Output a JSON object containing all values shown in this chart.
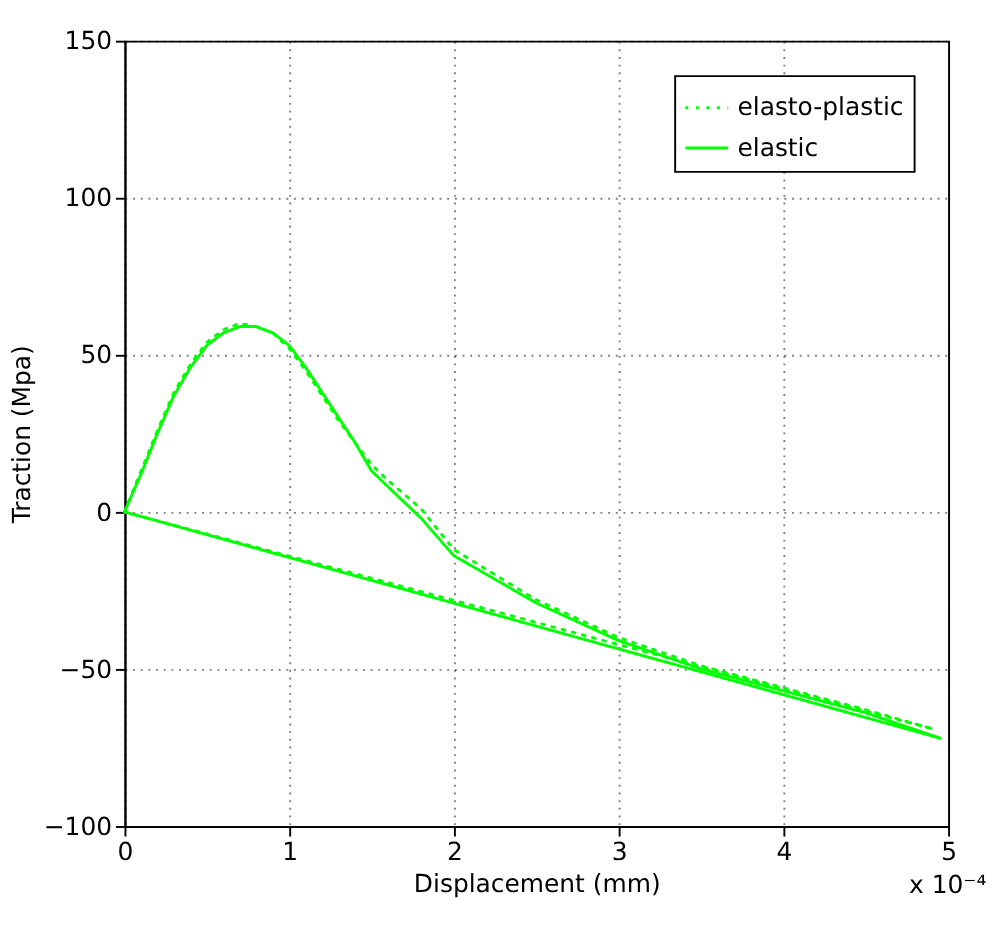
{
  "chart_data": {
    "type": "line",
    "xlabel": "Displacement (mm)",
    "ylabel": "Traction (Mpa)",
    "xlim": [
      0,
      5
    ],
    "ylim": [
      -100,
      150
    ],
    "xticks": [
      0,
      1,
      2,
      3,
      4,
      5
    ],
    "yticks": [
      -100,
      -50,
      0,
      50,
      100,
      150
    ],
    "grid": true,
    "legend": "top right",
    "annotations": [
      "x 10⁻⁴"
    ],
    "series": [
      {
        "name": "elasto-plastic",
        "color": "#00ff00",
        "line_style": "dotted",
        "x": [
          0,
          0.1,
          0.2,
          0.3,
          0.4,
          0.5,
          0.6,
          0.7,
          0.8,
          0.9,
          1.0,
          1.1,
          1.2,
          1.3,
          1.4,
          1.5,
          1.6,
          1.8,
          2.0,
          2.5,
          3.0,
          3.5,
          4.0,
          4.5,
          4.9
        ],
        "values": [
          0,
          13,
          26,
          38,
          47,
          54,
          58,
          60,
          59,
          57,
          52,
          45,
          37,
          29,
          22,
          15,
          10,
          1,
          -12,
          -28,
          -40,
          -49,
          -56,
          -63,
          -69
        ]
      },
      {
        "color": "#00ff00",
        "line_style": "dotted",
        "x": [
          0,
          4.9
        ],
        "values": [
          0,
          -69
        ]
      },
      {
        "name": "elastic",
        "color": "#00ff00",
        "line_style": "solid",
        "x": [
          0,
          0.1,
          0.2,
          0.3,
          0.4,
          0.5,
          0.6,
          0.7,
          0.8,
          0.9,
          1.0,
          1.1,
          1.2,
          1.3,
          1.4,
          1.5,
          1.6,
          1.8,
          2.0,
          2.5,
          3.0,
          3.5,
          4.0,
          4.5,
          4.95
        ],
        "values": [
          0,
          12,
          25,
          37,
          46,
          53,
          57,
          59,
          59,
          57,
          53,
          46,
          38,
          30,
          22,
          13,
          8,
          -2,
          -14,
          -29,
          -41,
          -50,
          -57,
          -64,
          -72
        ]
      },
      {
        "color": "#00ff00",
        "line_style": "solid",
        "x": [
          0,
          4.95
        ],
        "values": [
          0,
          -72
        ]
      }
    ]
  }
}
